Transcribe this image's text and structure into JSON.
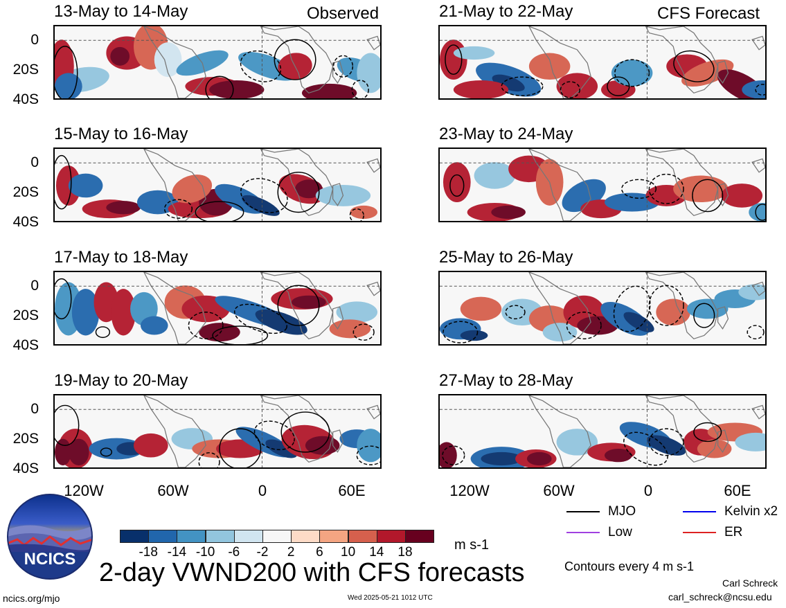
{
  "corner_labels": {
    "left": "Observed",
    "right": "CFS Forecast"
  },
  "panels": [
    {
      "title": "13-May to 14-May"
    },
    {
      "title": "21-May to 22-May"
    },
    {
      "title": "15-May to 16-May"
    },
    {
      "title": "23-May to 24-May"
    },
    {
      "title": "17-May to 18-May"
    },
    {
      "title": "25-May to 26-May"
    },
    {
      "title": "19-May to 20-May"
    },
    {
      "title": "27-May to 28-May"
    }
  ],
  "lat_labels": [
    "0",
    "20S",
    "40S"
  ],
  "lon_labels": [
    "120W",
    "60W",
    "0",
    "60E"
  ],
  "colorbar": {
    "ticks": [
      "-18",
      "-14",
      "-10",
      "-6",
      "-2",
      "2",
      "6",
      "10",
      "14",
      "18"
    ],
    "colors": [
      "#08306b",
      "#2166ac",
      "#4393c3",
      "#92c5de",
      "#d1e5f0",
      "#f7f7f7",
      "#fddbc7",
      "#f4a582",
      "#d6604d",
      "#b2182b",
      "#67001f"
    ],
    "units": "m s-1"
  },
  "legend": {
    "items": [
      {
        "label": "MJO",
        "color": "#000000"
      },
      {
        "label": "Kelvin x2",
        "color": "#0000ee"
      },
      {
        "label": "Low",
        "color": "#a040e0"
      },
      {
        "label": "ER",
        "color": "#dd2222"
      }
    ],
    "contours_note": "Contours every 4 m s-1"
  },
  "logo_text": "NCICS",
  "main_title": "2-day VWND200 with CFS forecasts",
  "author": "Carl Schreck",
  "email": "carl_schreck@ncsu.edu",
  "url": "ncics.org/mjo",
  "timestamp": "Wed 2025-05-21 1012 UTC"
}
